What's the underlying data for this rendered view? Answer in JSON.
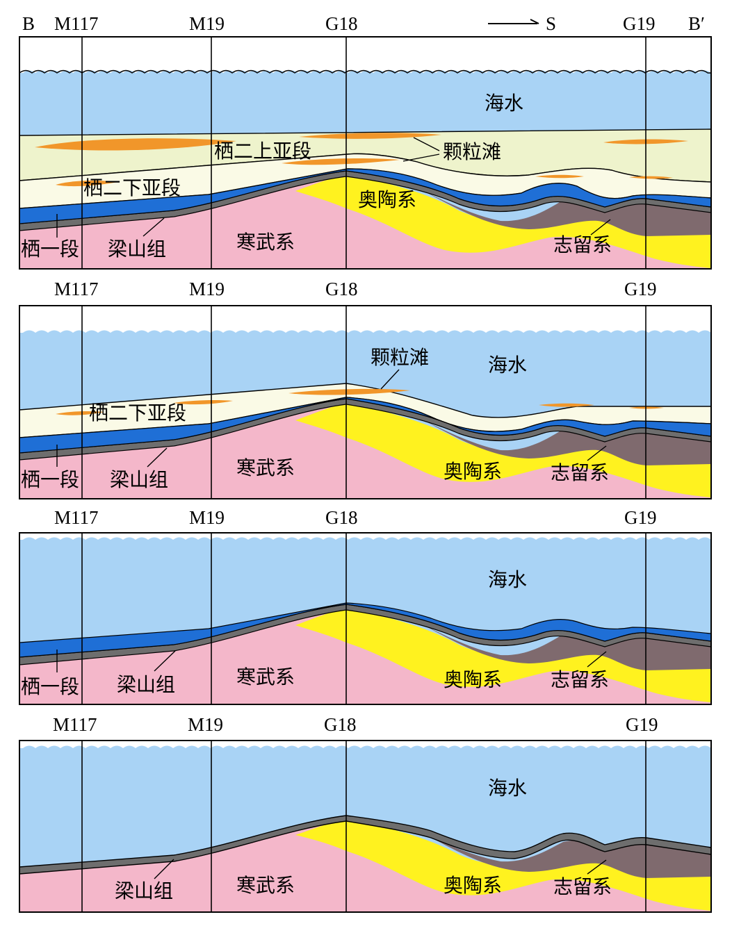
{
  "header": {
    "left_end": "B",
    "right_end": "B′",
    "direction": "S"
  },
  "wells": [
    "M117",
    "M19",
    "G18",
    "G19"
  ],
  "panels": [
    {
      "units": {
        "seawater": "海水",
        "upper_sub": "栖二上亚段",
        "grain_shoal": "颗粒滩",
        "lower_sub": "栖二下亚段",
        "ordovician": "奥陶系",
        "qi1": "栖一段",
        "liangshan": "梁山组",
        "cambrian": "寒武系",
        "silurian": "志留系"
      }
    },
    {
      "units": {
        "grain_shoal": "颗粒滩",
        "seawater": "海水",
        "lower_sub": "栖二下亚段",
        "qi1": "栖一段",
        "liangshan": "梁山组",
        "cambrian": "寒武系",
        "ordovician": "奥陶系",
        "silurian": "志留系"
      }
    },
    {
      "units": {
        "seawater": "海水",
        "qi1": "栖一段",
        "liangshan": "梁山组",
        "cambrian": "寒武系",
        "ordovician": "奥陶系",
        "silurian": "志留系"
      }
    },
    {
      "units": {
        "seawater": "海水",
        "liangshan": "梁山组",
        "cambrian": "寒武系",
        "ordovician": "奥陶系",
        "silurian": "志留系"
      }
    }
  ],
  "colors": {
    "seawater": "#a9d3f5",
    "upper_sub": "#eef3cc",
    "lower_sub": "#fafae6",
    "grain_shoal": "#f1962a",
    "qi1": "#1f6fd6",
    "liangshan": "#6e6e6e",
    "cambrian": "#f4b7ca",
    "ordovician": "#fff21f",
    "silurian": "#7f6a6e"
  }
}
